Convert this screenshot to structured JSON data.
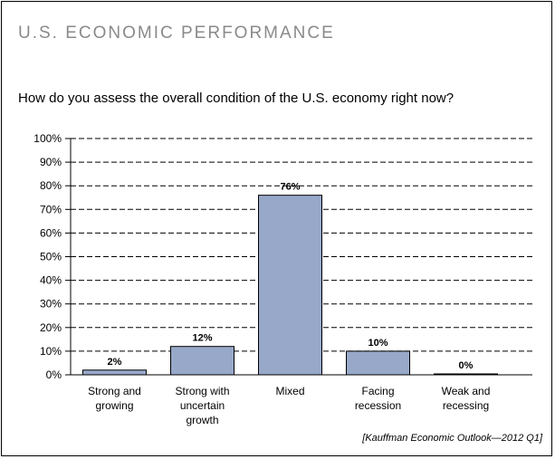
{
  "header": {
    "title": "U.S. ECONOMIC PERFORMANCE",
    "question": "How do you assess the overall condition of the U.S. economy right now?"
  },
  "source": "[Kauffman Economic Outlook—2012 Q1]",
  "chart_data": {
    "type": "bar",
    "categories": [
      [
        "Strong and",
        "growing"
      ],
      [
        "Strong with",
        "uncertain",
        "growth"
      ],
      [
        "Mixed"
      ],
      [
        "Facing",
        "recession"
      ],
      [
        "Weak and",
        "recessing"
      ]
    ],
    "values": [
      2,
      12,
      76,
      10,
      0
    ],
    "value_labels": [
      "2%",
      "12%",
      "76%",
      "10%",
      "0%"
    ],
    "yticks": [
      "0%",
      "10%",
      "20%",
      "30%",
      "40%",
      "50%",
      "60%",
      "70%",
      "80%",
      "90%",
      "100%"
    ],
    "ylim": [
      0,
      100
    ],
    "grid": "dashed at every 10%",
    "bar_color": "#97a8c9",
    "bar_edge_color": "#000000"
  }
}
